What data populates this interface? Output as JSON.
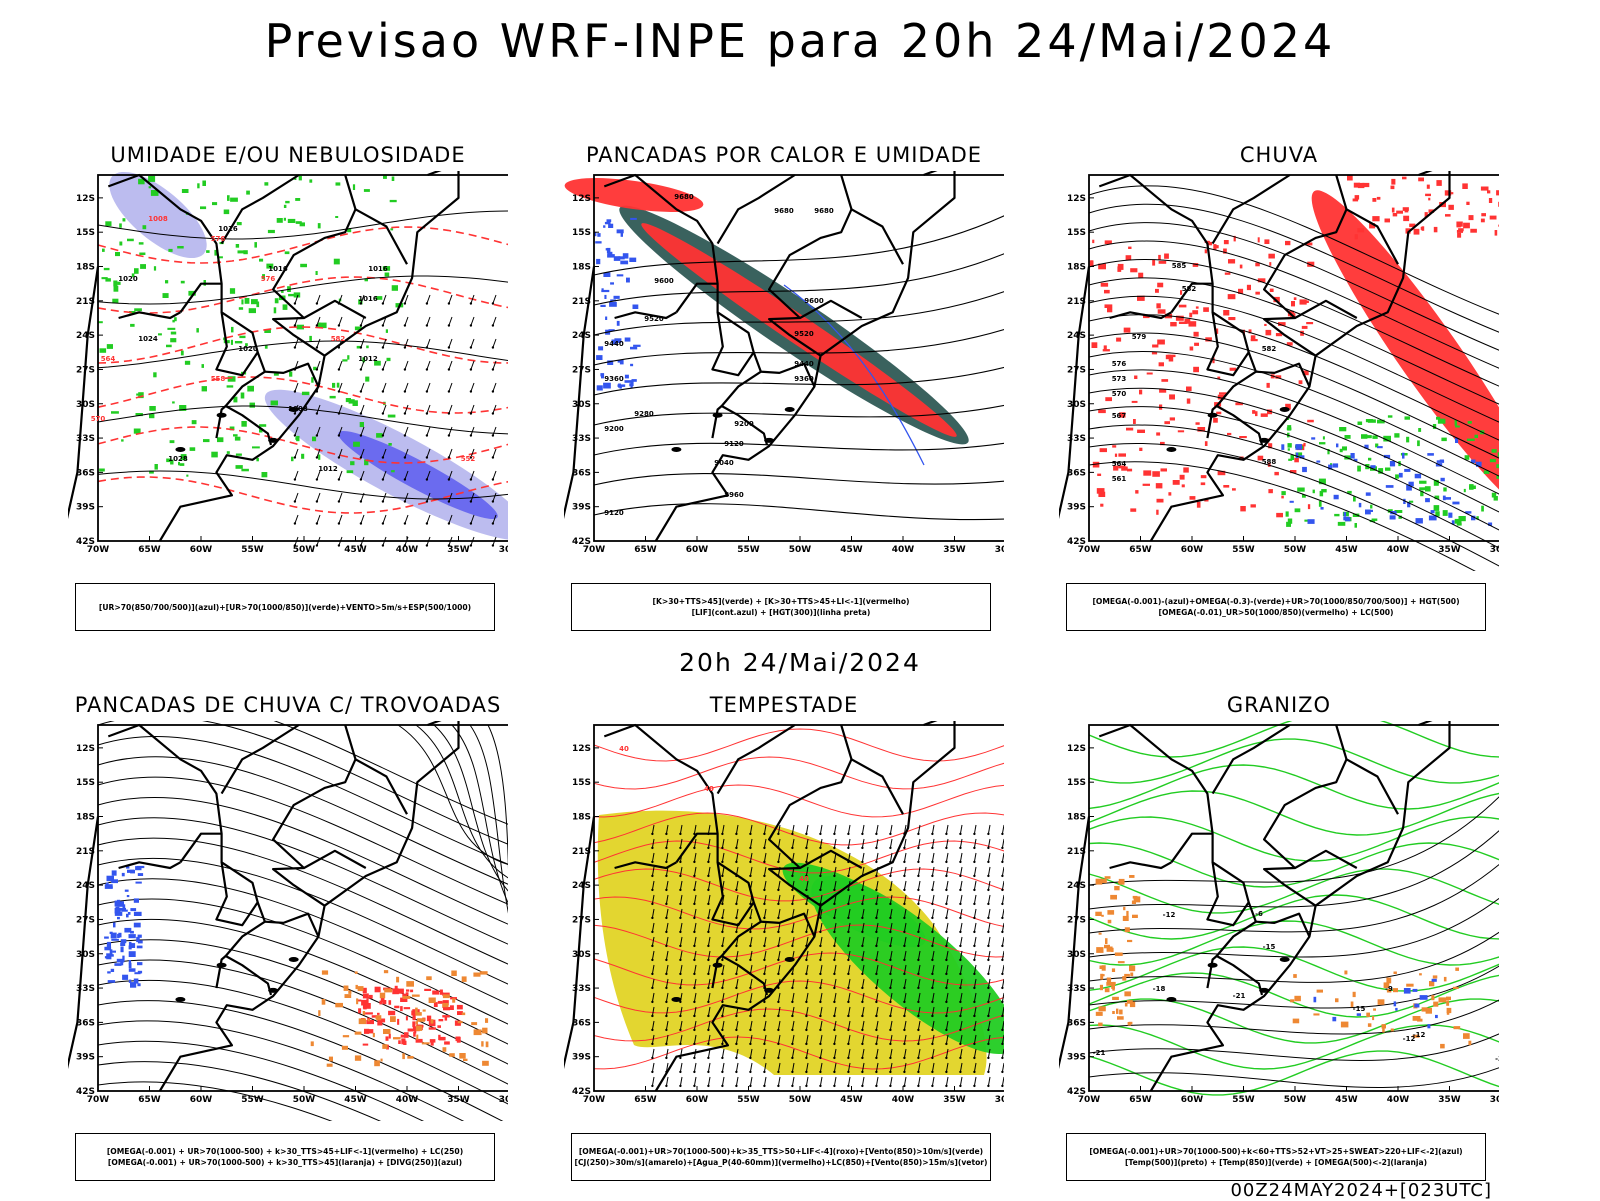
{
  "header": {
    "title": "Previsao WRF-INPE  para 20h 24/Mai/2024"
  },
  "mid_label": "20h 24/Mai/2024",
  "footer": "00Z24MAY2024+[023UTC]",
  "axes": {
    "lat_labels": [
      "12S",
      "15S",
      "18S",
      "21S",
      "24S",
      "27S",
      "30S",
      "33S",
      "36S",
      "39S",
      "42S"
    ],
    "lon_labels": [
      "70W",
      "65W",
      "60W",
      "55W",
      "50W",
      "45W",
      "40W",
      "35W",
      "30W"
    ]
  },
  "colors": {
    "blue": "#3355ee",
    "green": "#22cc22",
    "red": "#ff3333",
    "darkteal": "#2f5a55",
    "yellow": "#e3d630",
    "orange": "#ee8833",
    "lavender": "#b8b8ee"
  },
  "panels": [
    {
      "id": "umidade",
      "title": "UMIDADE E/OU NEBULOSIDADE",
      "legend": [
        "[UR>70(850/700/500)](azul)+[UR>70(1000/850)](verde)+VENTO>5m/s+ESP(500/1000)"
      ],
      "labels": [
        "1016",
        "1016",
        "1016",
        "1020",
        "1024",
        "1020",
        "1016",
        "1012",
        "1008",
        "1012",
        "1028",
        "1008",
        "576",
        "576",
        "564",
        "558",
        "552",
        "570",
        "582"
      ]
    },
    {
      "id": "pancadas_calor",
      "title": "PANCADAS POR CALOR E UMIDADE",
      "legend": [
        "[K>30+TTS>45](verde) + [K>30+TTS>45+LI<-1](vermelho)",
        "[LIF](cont.azul) + [HGT(300)](linha preta)"
      ],
      "labels": [
        "9680",
        "9680",
        "9680",
        "9600",
        "9520",
        "9440",
        "9360",
        "9280",
        "9200",
        "9120",
        "9040",
        "8960",
        "9120",
        "9600",
        "9520",
        "9440",
        "9360",
        "9200"
      ]
    },
    {
      "id": "chuva",
      "title": "CHUVA",
      "legend": [
        "[OMEGA(-0.001)-(azul)+OMEGA(-0.3)-(verde)+UR>70(1000/850/700/500)] + HGT(500)",
        "[OMEGA(-0.01)_UR>50(1000/850)(vermelho) + LC(500)"
      ],
      "labels": [
        "585",
        "582",
        "579",
        "576",
        "573",
        "570",
        "567",
        "564",
        "561",
        "582",
        "588"
      ]
    },
    {
      "id": "trovoadas",
      "title": "PANCADAS DE CHUVA C/ TROVOADAS",
      "legend": [
        "[OMEGA(-0.001) + UR>70(1000-500) + k>30_TTS>45+LIF<-1](vermelho) + LC(250)",
        "[OMEGA(-0.001) + UR>70(1000-500) + k>30_TTS>45](laranja) + [DIVG(250)](azul)"
      ],
      "labels": []
    },
    {
      "id": "tempestade",
      "title": "TEMPESTADE",
      "legend": [
        "[OMEGA(-0.001)+UR>70(1000-500)+k>35_TTS>50+LIF<-4](roxo)+[Vento(850)>10m/s](verde)",
        "[CJ(250)>30m/s](amarelo)+[Agua_P(40-60mm)](vermelho)+LC(850)+[Vento(850)>15m/s](vetor)"
      ],
      "labels": [
        "40",
        "40",
        "40"
      ]
    },
    {
      "id": "granizo",
      "title": "GRANIZO",
      "legend": [
        "[OMEGA(-0.001)+UR>70(1000-500)+k<60+TTS>52+VT>25+SWEAT>220+LIF<-2](azul)",
        "[Temp(500)](preto) + [Temp(850)](verde) + [OMEGA(500)<-2](laranja)"
      ],
      "labels": [
        "-12",
        "-15",
        "-18",
        "-21",
        "-9",
        "-12",
        "-15",
        "-12",
        "-21",
        "-3",
        "-6"
      ]
    }
  ]
}
